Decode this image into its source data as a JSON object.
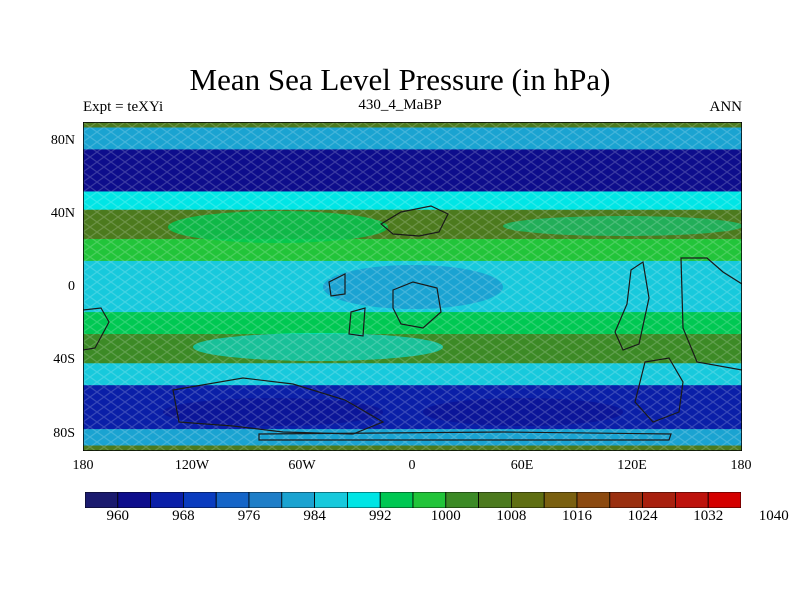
{
  "title": "Mean Sea Level Pressure (in hPa)",
  "subtitle_left": "Expt = teXYi",
  "subtitle_center": "430_4_MaBP",
  "subtitle_right": "ANN",
  "map": {
    "projection": "cylindrical-equidistant",
    "lat_ticks": [
      "80N",
      "40N",
      "0",
      "40S",
      "80S"
    ],
    "lon_ticks": [
      "180",
      "120W",
      "60W",
      "0",
      "60E",
      "120E",
      "180"
    ],
    "field": "mean sea level pressure",
    "units": "hPa",
    "zonal_bands": [
      {
        "lat_range": [
          90,
          87
        ],
        "value": 1004
      },
      {
        "lat_range": [
          87,
          75
        ],
        "value": 982
      },
      {
        "lat_range": [
          75,
          52
        ],
        "value": 962
      },
      {
        "lat_range": [
          52,
          42
        ],
        "value": 988
      },
      {
        "lat_range": [
          42,
          26
        ],
        "value": 1006
      },
      {
        "lat_range": [
          26,
          14
        ],
        "value": 996
      },
      {
        "lat_range": [
          14,
          -14
        ],
        "value": 984
      },
      {
        "lat_range": [
          -14,
          -26
        ],
        "value": 994
      },
      {
        "lat_range": [
          -26,
          -42
        ],
        "value": 1000
      },
      {
        "lat_range": [
          -42,
          -54
        ],
        "value": 984
      },
      {
        "lat_range": [
          -54,
          -78
        ],
        "value": 966
      },
      {
        "lat_range": [
          -78,
          -87
        ],
        "value": 980
      },
      {
        "lat_range": [
          -87,
          -90
        ],
        "value": 1004
      }
    ]
  },
  "colorbar": {
    "labels": [
      "960",
      "968",
      "976",
      "984",
      "992",
      "1000",
      "1008",
      "1016",
      "1024",
      "1032",
      "1040"
    ],
    "colors": [
      "#1a1a6e",
      "#0d0d8c",
      "#0a1fa8",
      "#0a3cbf",
      "#1565c8",
      "#1e7ec8",
      "#1aa3d1",
      "#17c9dc",
      "#00e5e5",
      "#00c853",
      "#22c43a",
      "#3c8a26",
      "#4c7a1e",
      "#5f6e12",
      "#7a6010",
      "#8c4a10",
      "#9a3010",
      "#a8200e",
      "#bd120c",
      "#d40000"
    ]
  }
}
